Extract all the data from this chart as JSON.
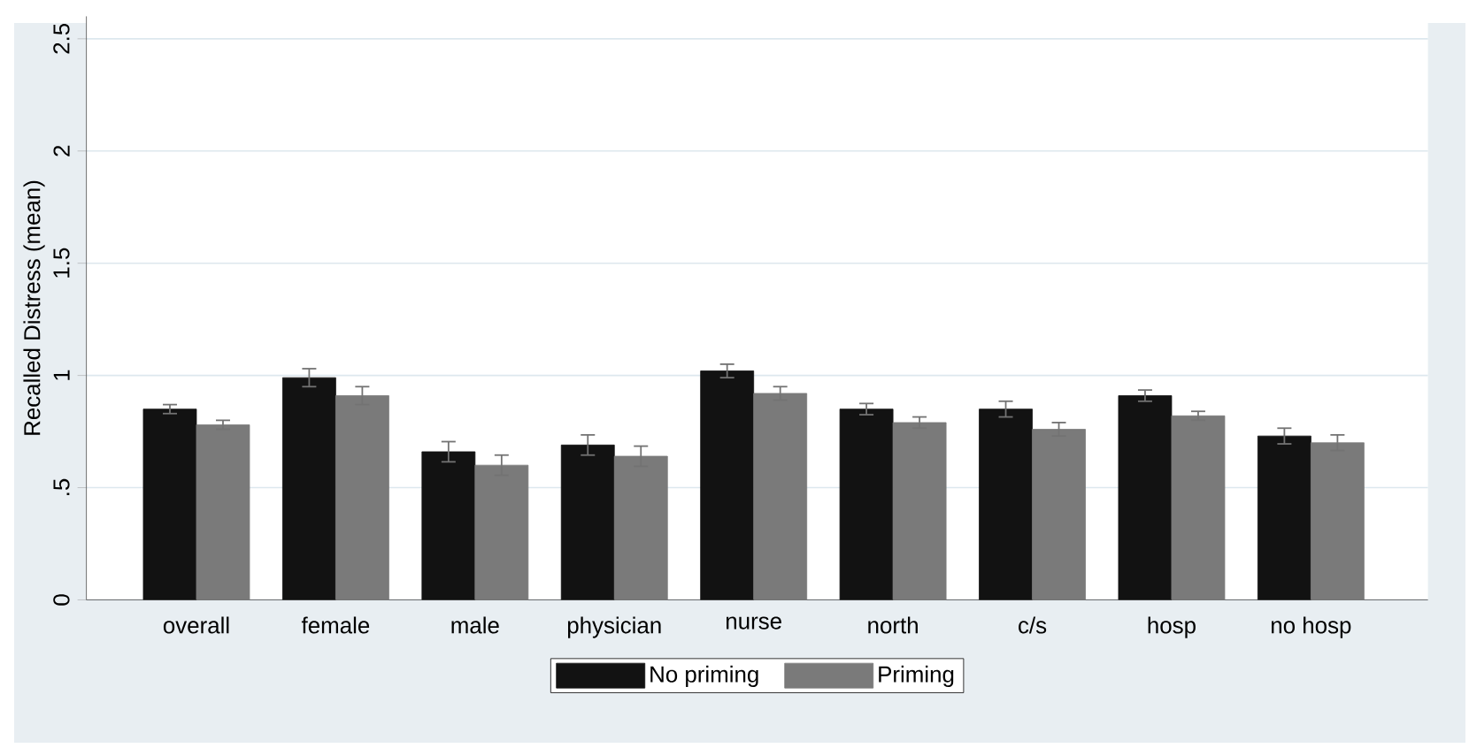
{
  "chart_data": {
    "type": "bar",
    "ylabel": "Recalled Distress (mean)",
    "categories": [
      "overall",
      "female",
      "male",
      "physician",
      "nurse",
      "north",
      "c/s",
      "hosp",
      "no hosp"
    ],
    "series": [
      {
        "name": "No priming",
        "color": "#121212",
        "values": [
          0.85,
          0.99,
          0.66,
          0.69,
          1.02,
          0.85,
          0.85,
          0.91,
          0.73
        ],
        "errors": [
          0.02,
          0.04,
          0.045,
          0.045,
          0.03,
          0.025,
          0.035,
          0.025,
          0.035
        ]
      },
      {
        "name": "Priming",
        "color": "#7a7a7a",
        "values": [
          0.78,
          0.91,
          0.6,
          0.64,
          0.92,
          0.79,
          0.76,
          0.82,
          0.7
        ],
        "errors": [
          0.02,
          0.04,
          0.045,
          0.045,
          0.03,
          0.025,
          0.03,
          0.02,
          0.035
        ]
      }
    ],
    "ylim": [
      0,
      2.6
    ],
    "yticks": [
      0,
      {
        "value": 0.5,
        "label": ".5"
      },
      1,
      {
        "value": 1.5,
        "label": "1.5"
      },
      2,
      {
        "value": 2.5,
        "label": "2.5"
      }
    ],
    "grid": "y",
    "legend": "bottom"
  }
}
